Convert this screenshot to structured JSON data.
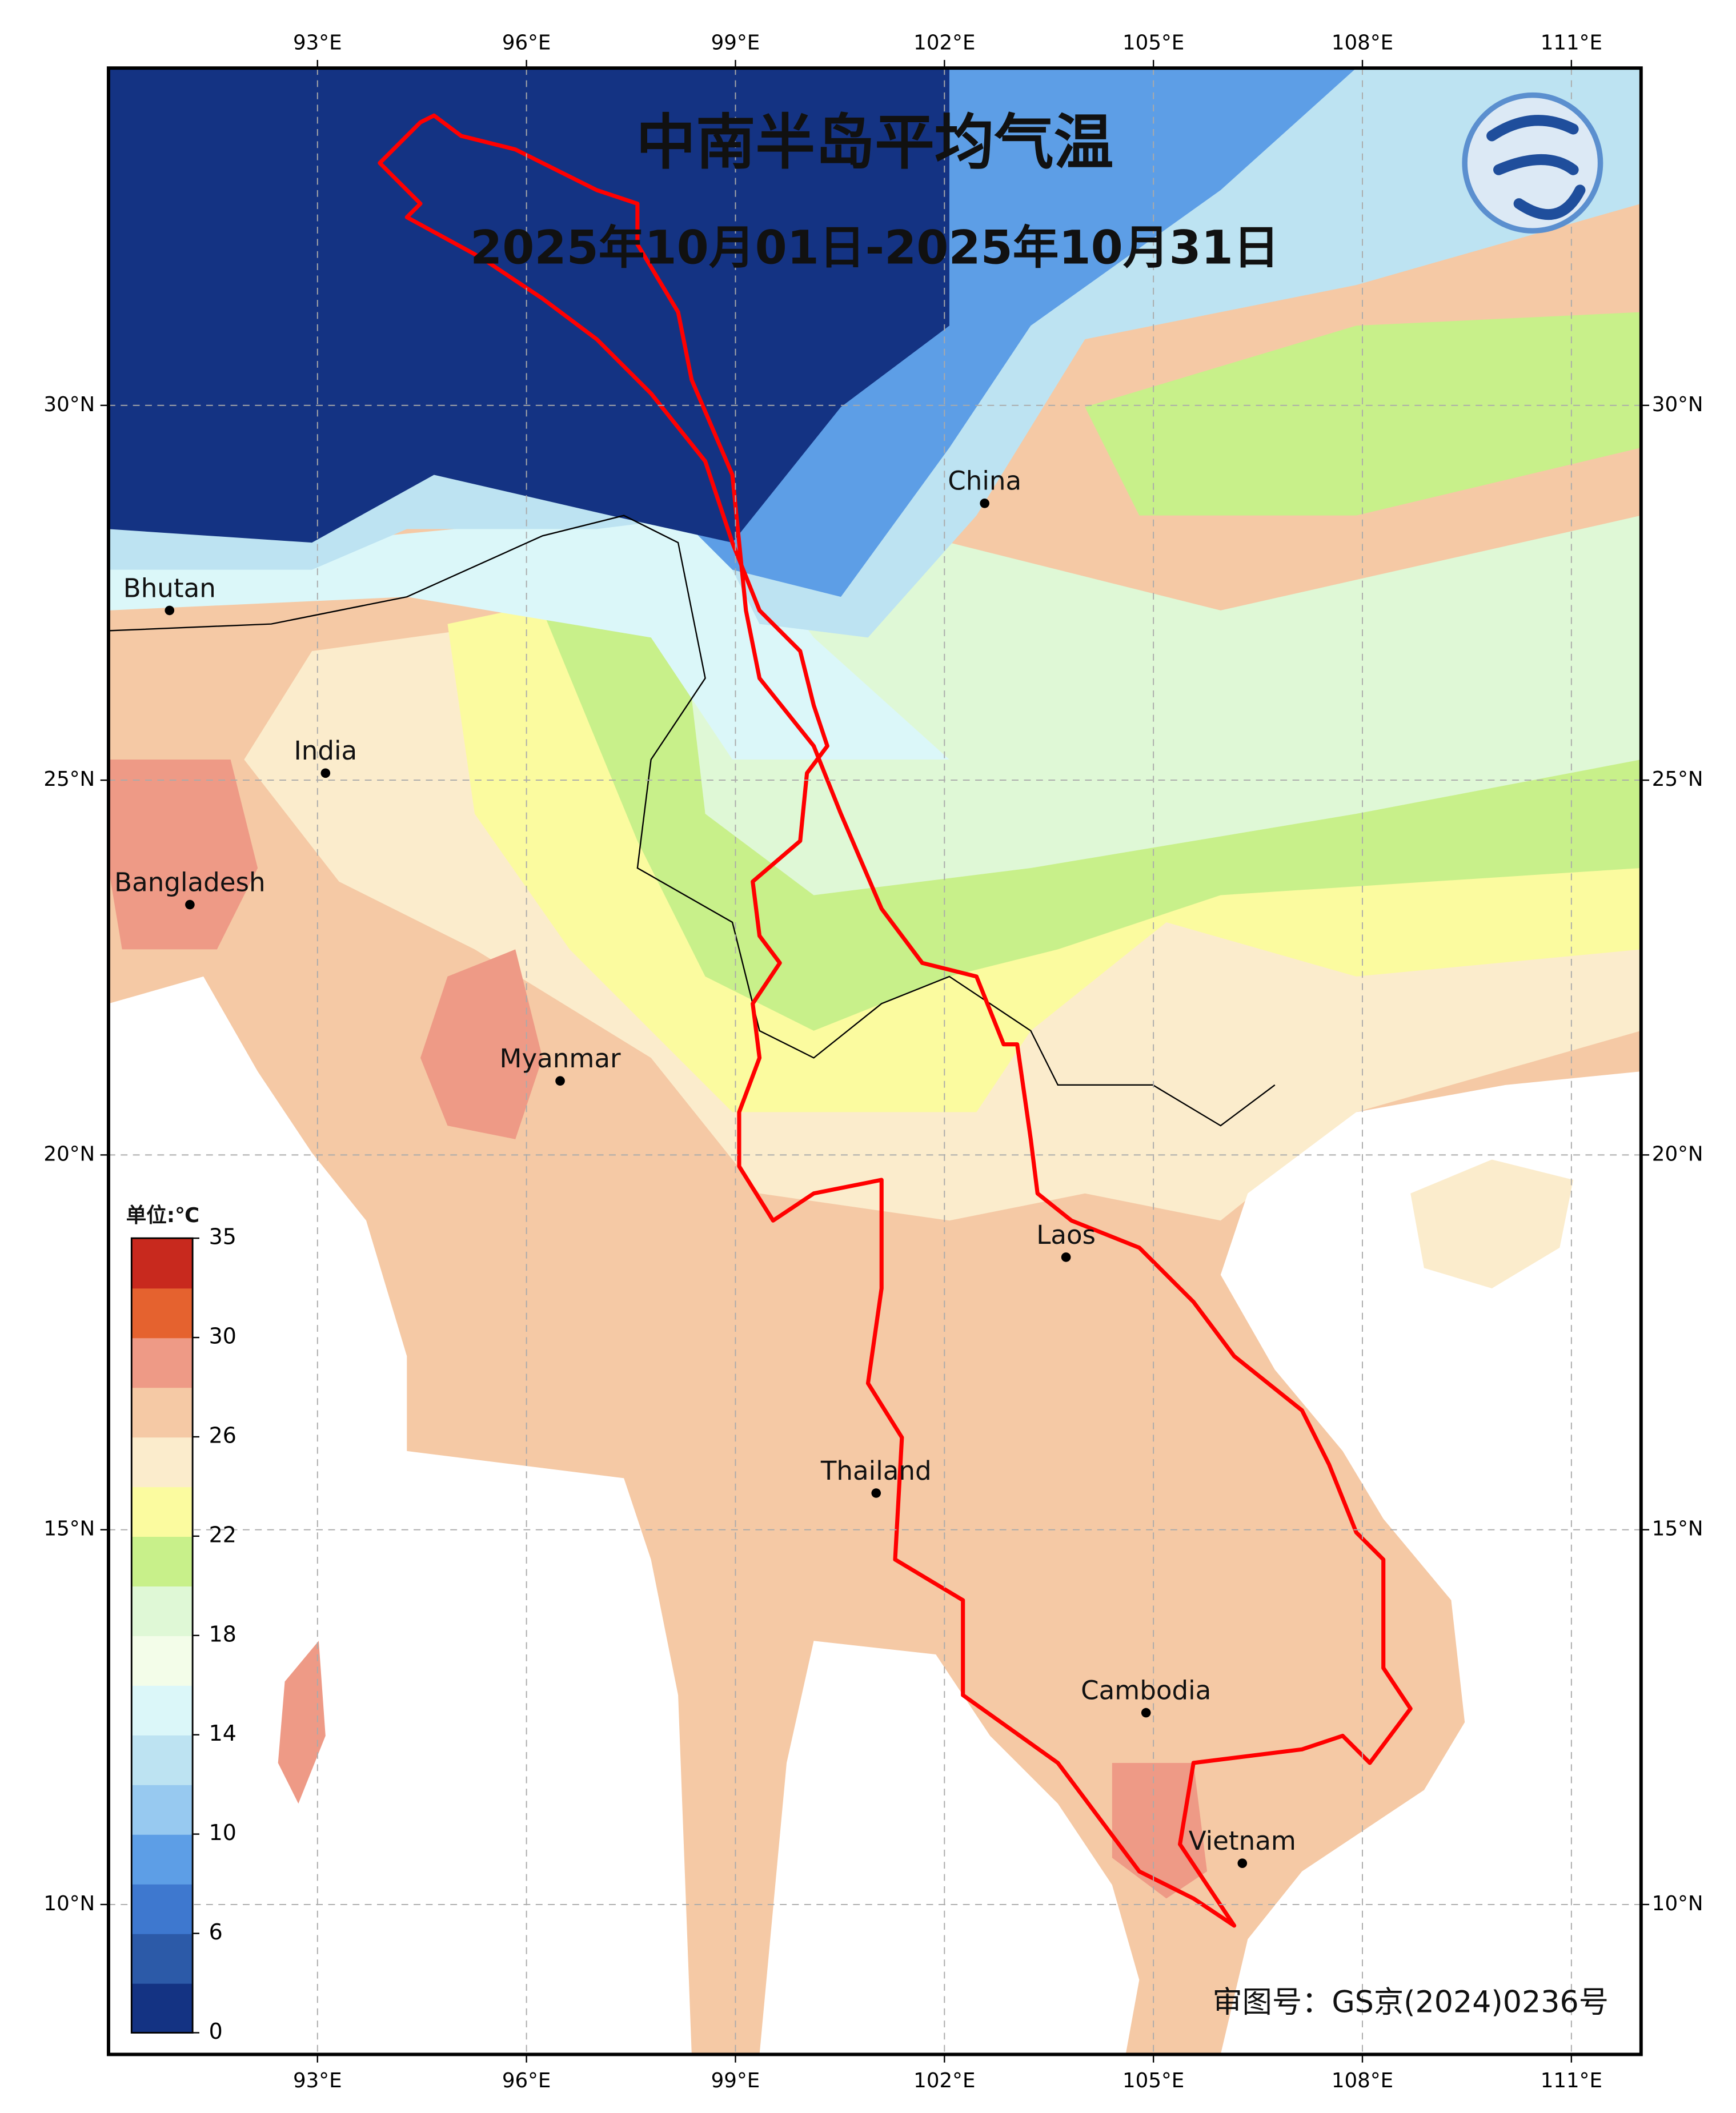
{
  "map": {
    "title": "中南半岛平均气温",
    "subtitle": "2025年10月01日-2025年10月31日",
    "xlim": [
      90,
      112
    ],
    "ylim": [
      8,
      34.5
    ],
    "xticks": [
      {
        "value": 93,
        "label": "93°E"
      },
      {
        "value": 96,
        "label": "96°E"
      },
      {
        "value": 99,
        "label": "99°E"
      },
      {
        "value": 102,
        "label": "102°E"
      },
      {
        "value": 105,
        "label": "105°E"
      },
      {
        "value": 108,
        "label": "108°E"
      },
      {
        "value": 111,
        "label": "111°E"
      }
    ],
    "yticks": [
      {
        "value": 10,
        "label": "10°N"
      },
      {
        "value": 15,
        "label": "15°N"
      },
      {
        "value": 20,
        "label": "20°N"
      },
      {
        "value": 25,
        "label": "25°N"
      },
      {
        "value": 30,
        "label": "30°N"
      }
    ],
    "grid": true,
    "places": [
      {
        "name": "Bhutan"
      },
      {
        "name": "India"
      },
      {
        "name": "Bangladesh"
      },
      {
        "name": "Myanmar"
      },
      {
        "name": "China"
      },
      {
        "name": "Laos"
      },
      {
        "name": "Thailand"
      },
      {
        "name": "Cambodia"
      },
      {
        "name": "Vietnam"
      }
    ],
    "colorbar": {
      "title": "单位:℃",
      "colors": [
        "#143383",
        "#2c5aa8",
        "#3e78cf",
        "#5d9ee6",
        "#97c9f0",
        "#bde3f2",
        "#dbf7f9",
        "#f3fde9",
        "#dff8d6",
        "#c8f08a",
        "#fbfb9f",
        "#fbeccc",
        "#f5c9a5",
        "#ee9a86",
        "#e5622f",
        "#c8291e"
      ],
      "ticks": [
        0,
        6,
        10,
        14,
        18,
        22,
        26,
        30,
        35
      ]
    },
    "approval": "审图号：GS京(2024)0236号"
  }
}
